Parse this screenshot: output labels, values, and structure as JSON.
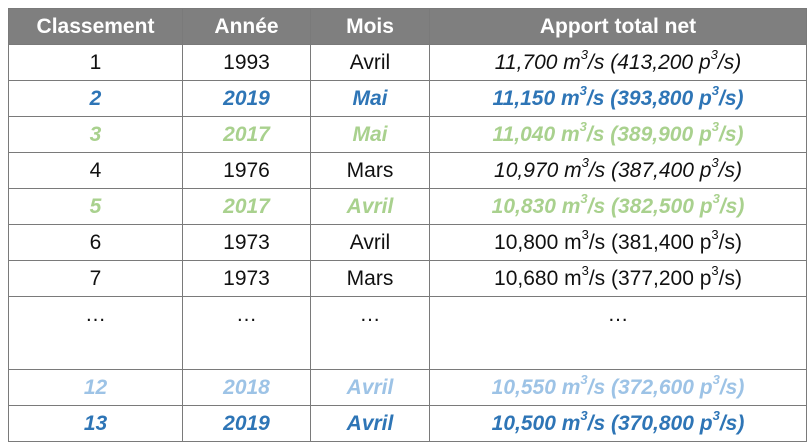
{
  "headers": [
    "Classement",
    "Année",
    "Mois",
    "Apport total net"
  ],
  "rows": [
    {
      "rank": "1",
      "year": "1993",
      "month": "Avril",
      "flow_m": "11,700 m",
      "flow_mid": "/s (413,200 p",
      "flow_end": "/s)",
      "style": "italic"
    },
    {
      "rank": "2",
      "year": "2019",
      "month": "Mai",
      "flow_m": "11,150 m",
      "flow_mid": "/s (393,800 p",
      "flow_end": "/s)",
      "style": "dark"
    },
    {
      "rank": "3",
      "year": "2017",
      "month": "Mai",
      "flow_m": "11,040 m",
      "flow_mid": "/s (389,900 p",
      "flow_end": "/s)",
      "style": "green"
    },
    {
      "rank": "4",
      "year": "1976",
      "month": "Mars",
      "flow_m": "10,970 m",
      "flow_mid": "/s (387,400 p",
      "flow_end": "/s)",
      "style": "italic"
    },
    {
      "rank": "5",
      "year": "2017",
      "month": "Avril",
      "flow_m": "10,830 m",
      "flow_mid": "/s (382,500 p",
      "flow_end": "/s)",
      "style": "green"
    },
    {
      "rank": "6",
      "year": "1973",
      "month": "Avril",
      "flow_m": "10,800 m",
      "flow_mid": "/s (381,400 p",
      "flow_end": "/s)",
      "style": "plain"
    },
    {
      "rank": "7",
      "year": "1973",
      "month": "Mars",
      "flow_m": "10,680 m",
      "flow_mid": "/s (377,200 p",
      "flow_end": "/s)",
      "style": "plain"
    },
    {
      "rank": "…",
      "year": "…",
      "month": "…",
      "flow_text": "…",
      "style": "ellipsis"
    },
    {
      "rank": "12",
      "year": "2018",
      "month": "Avril",
      "flow_m": "10,550 m",
      "flow_mid": "/s (372,600 p",
      "flow_end": "/s)",
      "style": "light"
    },
    {
      "rank": "13",
      "year": "2019",
      "month": "Avril",
      "flow_m": "10,500 m",
      "flow_mid": "/s (370,800 p",
      "flow_end": "/s)",
      "style": "dark"
    }
  ],
  "superscript": "3",
  "colors": {
    "header_bg": "#7f7f7f",
    "dark_blue": "#2e75b6",
    "green": "#a9d18e",
    "light_blue": "#9dc3e6"
  }
}
